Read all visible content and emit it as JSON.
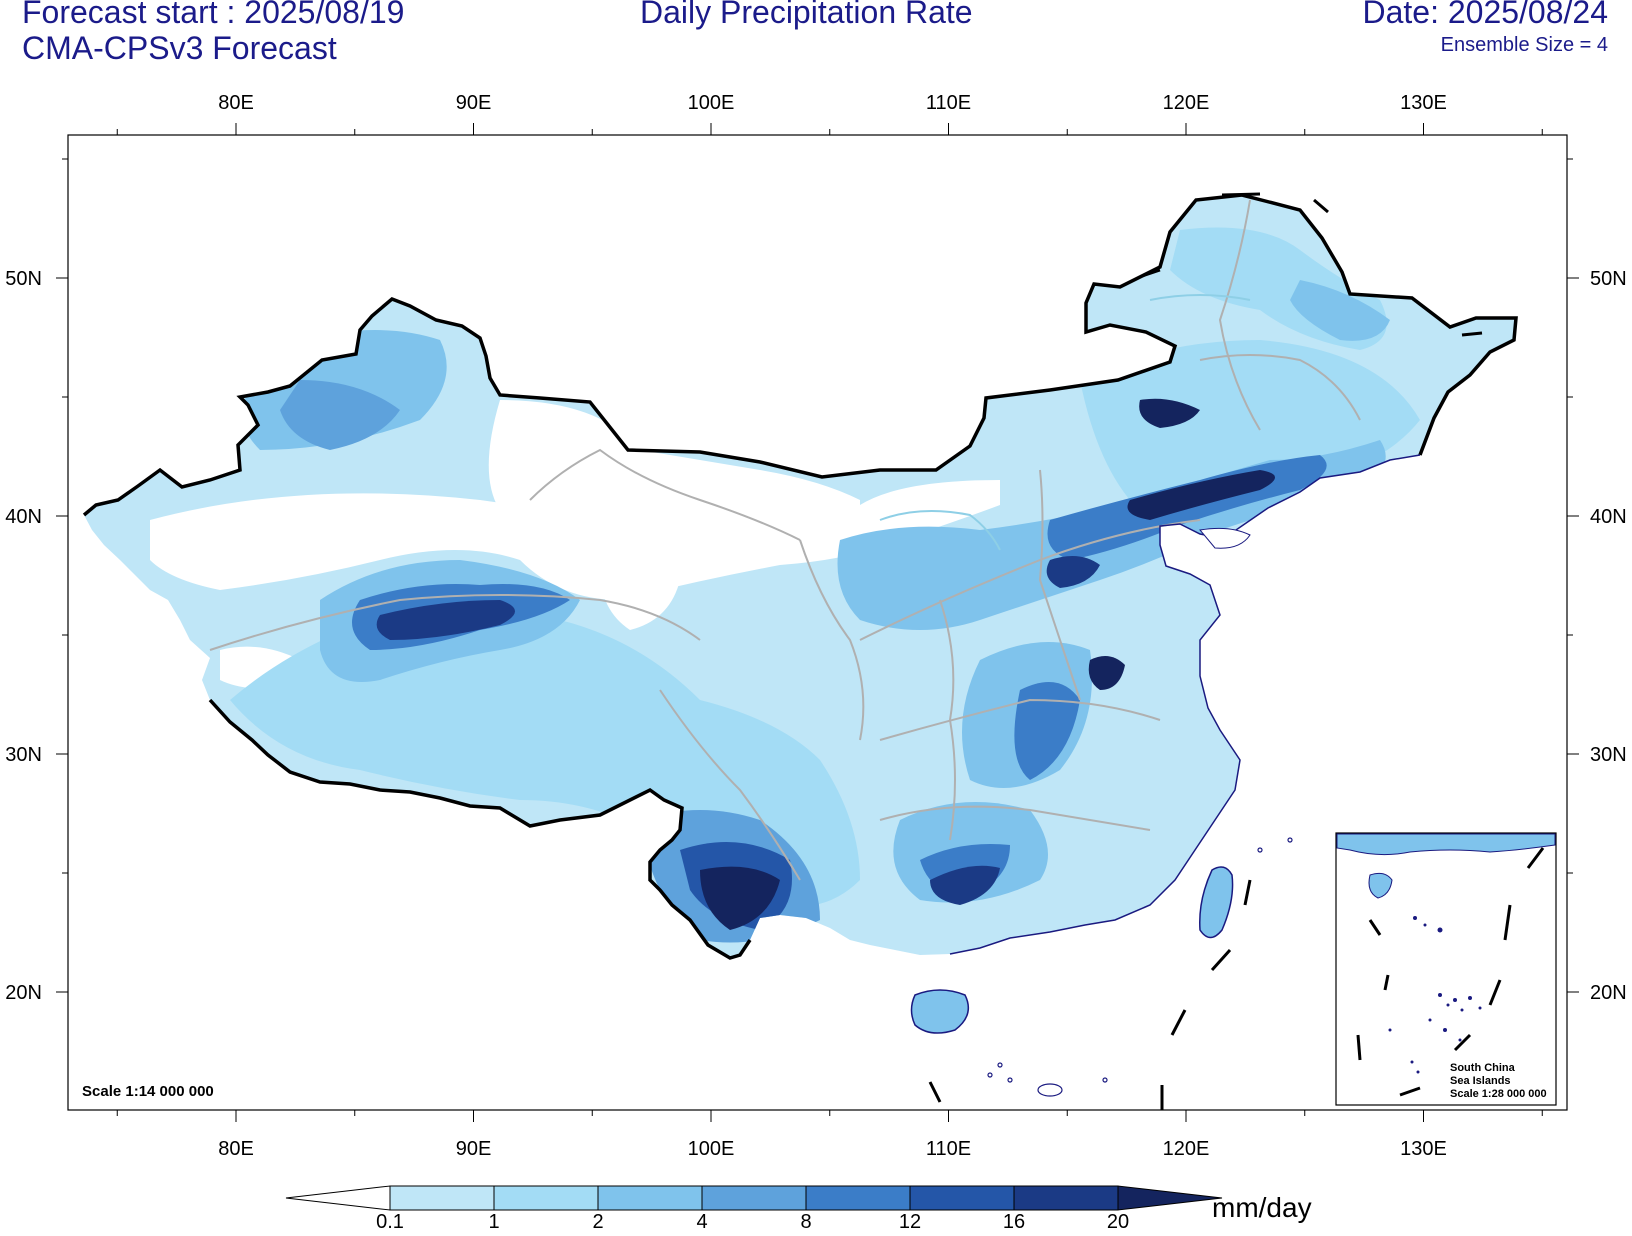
{
  "header": {
    "forecast_start": "Forecast start : 2025/08/19",
    "model": "CMA-CPSv3 Forecast",
    "title": "Daily Precipitation Rate",
    "date": "Date: 2025/08/24",
    "ensemble": "Ensemble Size = 4"
  },
  "map": {
    "lon_labels": [
      "80E",
      "90E",
      "100E",
      "110E",
      "120E",
      "130E"
    ],
    "lat_labels": [
      "50N",
      "40N",
      "30N",
      "20N"
    ],
    "scale_note": "Scale 1:14 000 000",
    "inset_caption": [
      "South China",
      "Sea Islands",
      "Scale 1:28 000 000"
    ]
  },
  "legend": {
    "units": "mm/day",
    "levels": [
      "0.1",
      "1",
      "2",
      "4",
      "8",
      "12",
      "16",
      "20"
    ],
    "colors": [
      "#ffffff",
      "#bfe6f7",
      "#a3dcf5",
      "#7fc3ec",
      "#5ea2dc",
      "#3b7dc8",
      "#2456a8",
      "#1b3a85",
      "#14245e"
    ]
  }
}
